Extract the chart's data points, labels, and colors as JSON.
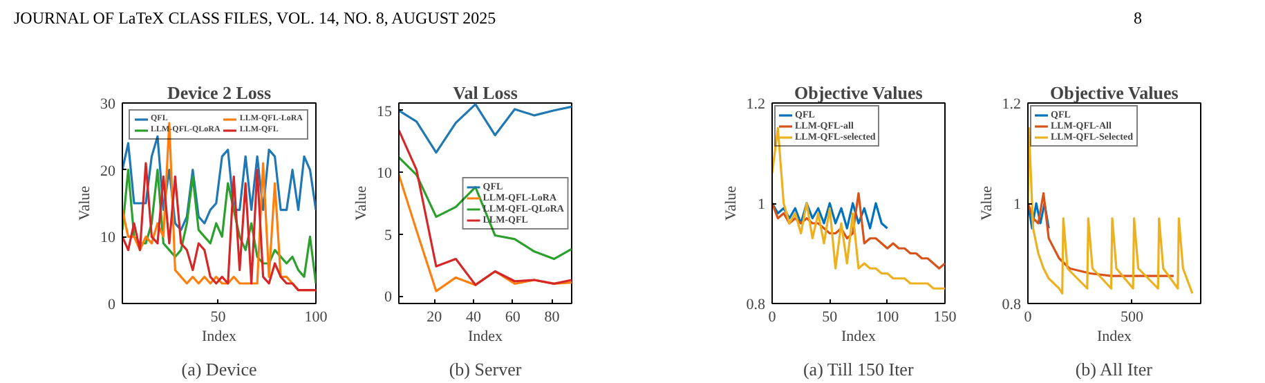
{
  "chart_data": [
    {
      "type": "line",
      "title": "Device 2 Loss",
      "xlabel": "Index",
      "ylabel": "Value",
      "xlim": [
        1,
        100
      ],
      "ylim": [
        0,
        30
      ],
      "xticks": [
        50,
        100
      ],
      "yticks": [
        0,
        10,
        20,
        30
      ],
      "legend": "top",
      "annotations": [
        "JOURNAL OF LaTeX CLASS FILES, VOL. 14, NO. 8, AUGUST 2025",
        "8",
        "(a) Device"
      ],
      "x": [
        1,
        4,
        7,
        10,
        13,
        16,
        19,
        22,
        25,
        28,
        31,
        34,
        37,
        40,
        43,
        46,
        49,
        52,
        55,
        58,
        61,
        64,
        67,
        70,
        73,
        76,
        79,
        82,
        85,
        88,
        91,
        94,
        97,
        100
      ],
      "series": [
        {
          "name": "QFL",
          "color": "#1f77b4",
          "values": [
            20,
            24,
            15,
            15,
            15,
            22,
            25,
            14,
            20,
            12,
            11,
            13,
            20,
            13,
            12,
            14,
            15,
            22,
            23,
            14,
            14,
            22,
            14,
            22,
            14,
            23,
            22,
            14,
            14,
            20,
            14,
            22,
            20,
            14
          ]
        },
        {
          "name": "LLM-QFL-QLoRA",
          "color": "#2ca02c",
          "values": [
            11,
            20,
            10,
            9,
            9,
            12,
            20,
            9,
            8,
            7,
            8,
            12,
            19,
            11,
            10,
            9,
            12,
            10,
            18,
            14,
            10,
            8,
            12,
            7,
            6,
            6,
            8,
            7,
            6,
            7,
            5,
            4,
            10,
            3
          ]
        },
        {
          "name": "LLM-QFL-LoRA",
          "color": "#ff7f0e",
          "values": [
            14,
            10,
            10,
            8,
            10,
            9,
            12,
            10,
            27,
            5,
            4,
            3,
            4,
            3,
            4,
            3,
            4,
            3,
            3,
            4,
            3,
            3,
            3,
            3,
            21,
            4,
            18,
            4,
            4,
            3,
            2,
            2,
            2,
            2
          ]
        },
        {
          "name": "LLM-QFL",
          "color": "#d62728",
          "values": [
            10,
            8,
            12,
            8,
            21,
            10,
            9,
            19,
            9,
            19,
            9,
            8,
            5,
            9,
            8,
            4,
            3,
            4,
            3,
            19,
            5,
            18,
            3,
            20,
            4,
            3,
            6,
            4,
            3,
            3,
            2,
            2,
            2,
            2
          ]
        }
      ]
    },
    {
      "type": "line",
      "title": "Val Loss",
      "xlabel": "Index",
      "ylabel": "Value",
      "xlim": [
        2,
        90
      ],
      "ylim": [
        -0.6,
        15.6
      ],
      "xticks": [
        20,
        40,
        60,
        80
      ],
      "yticks": [
        0,
        5,
        10,
        15
      ],
      "legend": "right",
      "annotations": [
        "(b) Server"
      ],
      "x": [
        2,
        11,
        21,
        31,
        41,
        51,
        61,
        71,
        81,
        90
      ],
      "series": [
        {
          "name": "QFL",
          "color": "#1f77b4",
          "values": [
            15,
            14.1,
            11.6,
            14,
            15.5,
            13,
            15.1,
            14.6,
            15,
            15.3
          ]
        },
        {
          "name": "LLM-QFL-LoRA",
          "color": "#ff7f0e",
          "values": [
            9.8,
            5.3,
            0.4,
            1.5,
            0.9,
            2.0,
            1.0,
            1.3,
            1.0,
            1.1
          ]
        },
        {
          "name": "LLM-QFL-QLoRA",
          "color": "#2ca02c",
          "values": [
            11.2,
            9.8,
            6.4,
            7.2,
            8.8,
            4.9,
            4.6,
            3.6,
            3.0,
            3.8
          ]
        },
        {
          "name": "LLM-QFL",
          "color": "#d62728",
          "values": [
            13.4,
            10.2,
            2.4,
            3.0,
            0.9,
            2.0,
            1.2,
            1.3,
            1.0,
            1.3
          ]
        }
      ]
    },
    {
      "type": "line",
      "title": "Objective Values",
      "xlabel": "Index",
      "ylabel": "Value",
      "xlim": [
        0,
        150
      ],
      "ylim": [
        0.8,
        1.2
      ],
      "xticks": [
        0,
        50,
        100,
        150
      ],
      "yticks": [
        0.8,
        1,
        1.2
      ],
      "legend": "top left",
      "annotations": [
        "(a) Till 150 Iter"
      ],
      "series": [
        {
          "name": "QFL",
          "color": "#0072bd",
          "x": [
            0,
            5,
            10,
            15,
            20,
            25,
            30,
            35,
            40,
            45,
            50,
            55,
            60,
            65,
            70,
            75,
            80,
            85,
            90,
            95,
            100
          ],
          "values": [
            1.0,
            0.98,
            0.99,
            0.97,
            0.99,
            0.96,
            1.0,
            0.97,
            0.99,
            0.96,
            1.0,
            0.96,
            0.99,
            0.95,
            1.0,
            0.96,
            0.99,
            0.95,
            1.0,
            0.96,
            0.95
          ]
        },
        {
          "name": "LLM-QFL-all",
          "color": "#d95319",
          "x": [
            0,
            5,
            10,
            15,
            20,
            25,
            30,
            35,
            40,
            45,
            50,
            55,
            60,
            65,
            70,
            75,
            80,
            85,
            90,
            95,
            100,
            105,
            110,
            115,
            120,
            125,
            130,
            135,
            140,
            145,
            150
          ],
          "values": [
            1.0,
            0.97,
            0.98,
            0.96,
            0.97,
            0.96,
            0.97,
            0.96,
            0.96,
            0.95,
            0.94,
            0.94,
            0.95,
            0.93,
            0.94,
            1.02,
            0.92,
            0.93,
            0.93,
            0.92,
            0.91,
            0.92,
            0.91,
            0.91,
            0.9,
            0.9,
            0.89,
            0.89,
            0.88,
            0.87,
            0.88
          ]
        },
        {
          "name": "LLM-QFL-selected",
          "color": "#edb120",
          "x": [
            0,
            5,
            10,
            15,
            20,
            25,
            30,
            35,
            40,
            45,
            50,
            55,
            60,
            65,
            70,
            75,
            80,
            85,
            90,
            95,
            100,
            105,
            110,
            115,
            120,
            125,
            130,
            135,
            140,
            145,
            150
          ],
          "values": [
            1.06,
            1.15,
            1.0,
            0.96,
            0.98,
            0.94,
            1.0,
            0.93,
            0.98,
            0.92,
            0.99,
            0.87,
            0.96,
            0.88,
            0.98,
            0.87,
            0.88,
            0.87,
            0.87,
            0.86,
            0.86,
            0.85,
            0.85,
            0.85,
            0.84,
            0.84,
            0.84,
            0.84,
            0.83,
            0.83,
            0.83
          ]
        }
      ]
    },
    {
      "type": "line",
      "title": "Objective Values",
      "xlabel": "Index",
      "ylabel": "Value",
      "xlim": [
        0,
        830
      ],
      "ylim": [
        0.8,
        1.2
      ],
      "xticks": [
        0,
        500
      ],
      "yticks": [
        0.8,
        1,
        1.2
      ],
      "legend": "top left",
      "annotations": [
        "(b) All Iter"
      ],
      "series": [
        {
          "name": "QFL",
          "color": "#0072bd",
          "x": [
            0,
            20,
            40,
            60,
            80,
            100
          ],
          "values": [
            1.0,
            0.95,
            1.0,
            0.96,
            1.0,
            0.95
          ]
        },
        {
          "name": "LLM-QFL-All",
          "color": "#d95319",
          "x": [
            0,
            25,
            50,
            75,
            100,
            150,
            200,
            300,
            400,
            500,
            600,
            700
          ],
          "values": [
            1.0,
            0.97,
            0.96,
            1.02,
            0.93,
            0.89,
            0.87,
            0.86,
            0.855,
            0.855,
            0.855,
            0.855
          ]
        },
        {
          "name": "LLM-QFL-Selected",
          "color": "#edb120",
          "x": [
            0,
            5,
            25,
            50,
            75,
            100,
            150,
            165,
            170,
            190,
            285,
            290,
            310,
            400,
            405,
            425,
            505,
            510,
            530,
            625,
            630,
            650,
            720,
            725,
            745,
            790
          ],
          "values": [
            1.0,
            1.15,
            0.95,
            0.9,
            0.87,
            0.85,
            0.83,
            0.82,
            0.97,
            0.87,
            0.83,
            0.97,
            0.87,
            0.83,
            0.97,
            0.87,
            0.83,
            0.97,
            0.87,
            0.83,
            0.97,
            0.87,
            0.83,
            0.97,
            0.87,
            0.82
          ]
        }
      ]
    }
  ]
}
